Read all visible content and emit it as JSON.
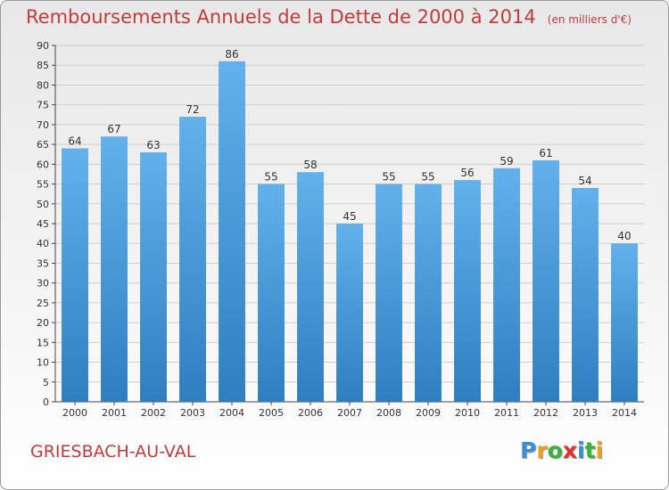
{
  "header": {
    "title": "Remboursements Annuels de la Dette de 2000 à 2014",
    "subtitle": "(en milliers d'€)"
  },
  "footer": {
    "commune": "GRIESBACH-AU-VAL",
    "logo_text": "Proxiti"
  },
  "colors": {
    "title": "#c23b3b",
    "bar_top": "#62b1eb",
    "bar_bottom": "#2f7ec1",
    "grid": "#cfcfcf",
    "logo": [
      "#3a8fd6",
      "#f0a020",
      "#3ab040",
      "#e03030",
      "#3a8fd6",
      "#3ab040",
      "#f0a020"
    ]
  },
  "chart_data": {
    "type": "bar",
    "categories": [
      "2000",
      "2001",
      "2002",
      "2003",
      "2004",
      "2005",
      "2006",
      "2007",
      "2008",
      "2009",
      "2010",
      "2011",
      "2012",
      "2013",
      "2014"
    ],
    "values": [
      64,
      67,
      63,
      72,
      86,
      55,
      58,
      45,
      55,
      55,
      56,
      59,
      61,
      54,
      40
    ],
    "title": "Remboursements Annuels de la Dette de 2000 à 2014",
    "subtitle": "(en milliers d'€)",
    "ylim": [
      0,
      90
    ],
    "ytick_step": 5,
    "grid": true
  }
}
